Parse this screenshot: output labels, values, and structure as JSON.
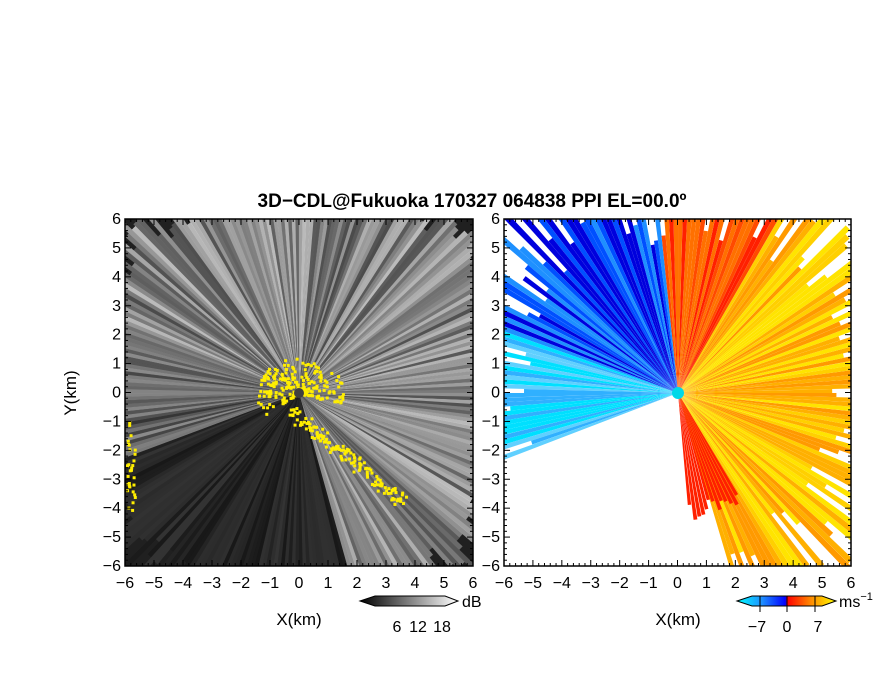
{
  "title": "3D−CDL@Fukuoka 170327 064838 PPI EL=00.0º",
  "chart_data": [
    {
      "type": "heatmap",
      "name": "reflectivity-ppi",
      "xlabel": "X(km)",
      "ylabel": "Y(km)",
      "xlim": [
        -6,
        6
      ],
      "ylim": [
        -6,
        6
      ],
      "x_ticks": [
        "−6",
        "−5",
        "−4",
        "−3",
        "−2",
        "−1",
        "0",
        "1",
        "2",
        "3",
        "4",
        "5",
        "6"
      ],
      "y_ticks": [
        "6",
        "5",
        "4",
        "3",
        "2",
        "1",
        "0",
        "−1",
        "−2",
        "−3",
        "−4",
        "−5",
        "−6"
      ],
      "colorscale": "grayscale",
      "colorbar": {
        "ticks": [
          "6",
          "12",
          "18"
        ],
        "unit": "dB"
      },
      "highlight_color": "#ffee00"
    },
    {
      "type": "heatmap",
      "name": "doppler-velocity-ppi",
      "xlabel": "X(km)",
      "xlim": [
        -6,
        6
      ],
      "ylim": [
        -6,
        6
      ],
      "x_ticks": [
        "−6",
        "−5",
        "−4",
        "−3",
        "−2",
        "−1",
        "0",
        "1",
        "2",
        "3",
        "4",
        "5",
        "6"
      ],
      "y_ticks": [
        "6",
        "5",
        "4",
        "3",
        "2",
        "1",
        "0",
        "−1",
        "−2",
        "−3",
        "−4",
        "−5",
        "−6"
      ],
      "colorscale": [
        "#00ffff",
        "#1e90ff",
        "#0000ff",
        "#ff0000",
        "#ff8c00",
        "#ffff00"
      ],
      "colorbar": {
        "ticks": [
          "−7",
          "0",
          "7"
        ],
        "unit": "ms",
        "unit_exp": "−1"
      }
    }
  ]
}
